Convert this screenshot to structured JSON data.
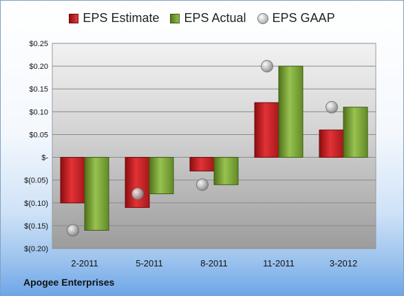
{
  "chart_data": {
    "type": "bar",
    "categories": [
      "2-2011",
      "5-2011",
      "8-2011",
      "11-2011",
      "3-2012"
    ],
    "series": [
      {
        "name": "EPS Estimate",
        "kind": "bar",
        "color": "#c0282b",
        "values": [
          -0.1,
          -0.11,
          -0.03,
          0.12,
          0.06
        ]
      },
      {
        "name": "EPS Actual",
        "kind": "bar",
        "color": "#7fa840",
        "values": [
          -0.16,
          -0.08,
          -0.06,
          0.2,
          0.11
        ]
      },
      {
        "name": "EPS GAAP",
        "kind": "marker",
        "color": "#b5b5b5",
        "values": [
          -0.16,
          -0.08,
          -0.06,
          0.2,
          0.11
        ]
      }
    ],
    "ylim": [
      -0.2,
      0.25
    ],
    "yticks": [
      0.25,
      0.2,
      0.15,
      0.1,
      0.05,
      0.0,
      -0.05,
      -0.1,
      -0.15,
      -0.2
    ],
    "ytick_labels": [
      "$0.25",
      "$0.20",
      "$0.15",
      "$0.10",
      "$0.05",
      "$-",
      "$(0.05)",
      "$(0.10)",
      "$(0.15)",
      "$(0.20)"
    ],
    "grid": true,
    "legend_position": "top-center"
  },
  "legend": {
    "estimate": "EPS Estimate",
    "actual": "EPS Actual",
    "gaap": "EPS GAAP"
  },
  "company": "Apogee Enterprises"
}
